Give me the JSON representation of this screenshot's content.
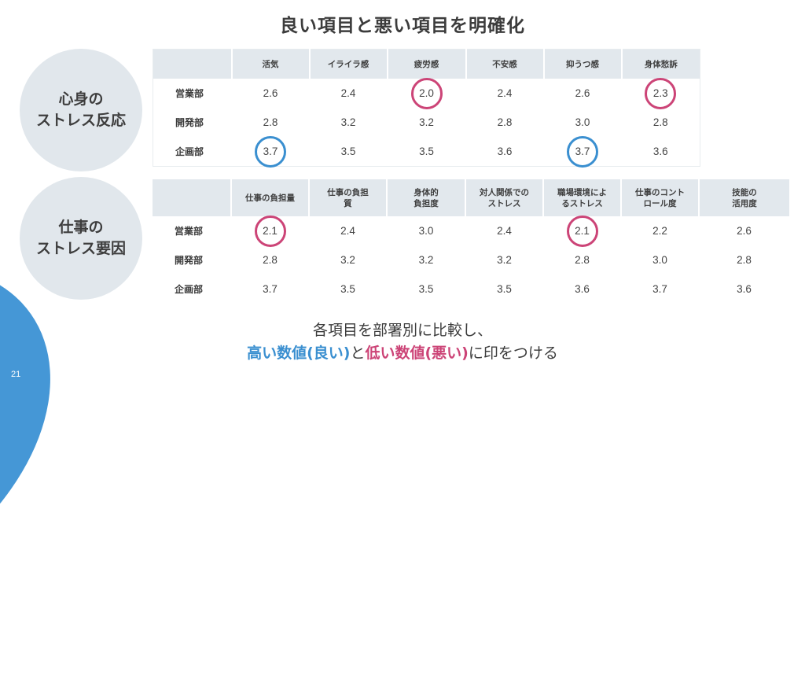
{
  "title": "良い項目と悪い項目を明確化",
  "page_number": "21",
  "colors": {
    "good": "#3a8fd0",
    "bad": "#cc4477",
    "header_bg": "#e2e8ed",
    "badge_bg": "#e1e7ec",
    "accent_shape": "#4597d6"
  },
  "section1": {
    "badge": [
      "心身の",
      "ストレス反応"
    ],
    "columns": [
      "活気",
      "イライラ感",
      "疲労感",
      "不安感",
      "抑うつ感",
      "身体愁訴"
    ],
    "rows": [
      {
        "label": "営業部",
        "values": [
          "2.6",
          "2.4",
          "2.0",
          "2.4",
          "2.6",
          "2.3"
        ],
        "marks": [
          "",
          "",
          "bad",
          "",
          "",
          "bad"
        ]
      },
      {
        "label": "開発部",
        "values": [
          "2.8",
          "3.2",
          "3.2",
          "2.8",
          "3.0",
          "2.8"
        ],
        "marks": [
          "",
          "",
          "",
          "",
          "",
          ""
        ]
      },
      {
        "label": "企画部",
        "values": [
          "3.7",
          "3.5",
          "3.5",
          "3.6",
          "3.7",
          "3.6"
        ],
        "marks": [
          "good",
          "",
          "",
          "",
          "good",
          ""
        ]
      }
    ]
  },
  "section2": {
    "badge": [
      "仕事の",
      "ストレス要因"
    ],
    "columns": [
      [
        "仕事の負担量",
        ""
      ],
      [
        "仕事の負担",
        "質"
      ],
      [
        "身体的",
        "負担度"
      ],
      [
        "対人関係での",
        "ストレス"
      ],
      [
        "職場環境によ",
        "るストレス"
      ],
      [
        "仕事のコント",
        "ロール度"
      ],
      [
        "技能の",
        "活用度"
      ]
    ],
    "rows": [
      {
        "label": "営業部",
        "values": [
          "2.1",
          "2.4",
          "3.0",
          "2.4",
          "2.1",
          "2.2",
          "2.6"
        ],
        "marks": [
          "bad",
          "",
          "",
          "",
          "bad",
          "",
          ""
        ]
      },
      {
        "label": "開発部",
        "values": [
          "2.8",
          "3.2",
          "3.2",
          "3.2",
          "2.8",
          "3.0",
          "2.8"
        ],
        "marks": [
          "",
          "",
          "",
          "",
          "",
          "",
          ""
        ]
      },
      {
        "label": "企画部",
        "values": [
          "3.7",
          "3.5",
          "3.5",
          "3.5",
          "3.6",
          "3.7",
          "3.6"
        ],
        "marks": [
          "",
          "",
          "",
          "",
          "",
          "",
          ""
        ]
      }
    ]
  },
  "summary": {
    "line1": "各項目を部署別に比較し、",
    "good_text": "高い数値(良い)",
    "connector": "と",
    "bad_text": "低い数値(悪い)",
    "tail": "に印をつける"
  }
}
